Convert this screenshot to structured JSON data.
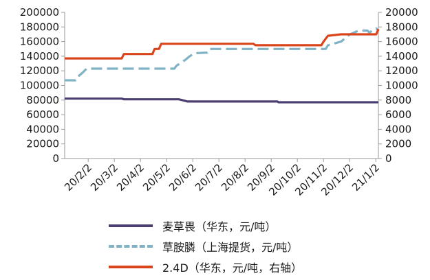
{
  "chart_data": {
    "type": "line",
    "x_categories": [
      "20/2/2",
      "20/3/2",
      "20/4/2",
      "20/5/2",
      "20/6/2",
      "20/7/2",
      "20/8/2",
      "20/9/2",
      "20/10/2",
      "20/11/2",
      "20/12/2",
      "21/1/2"
    ],
    "y_left": {
      "min": 0,
      "max": 200000,
      "ticks": [
        "0",
        "20000",
        "40000",
        "60000",
        "80000",
        "100000",
        "120000",
        "140000",
        "160000",
        "180000",
        "200000"
      ]
    },
    "y_right": {
      "min": 0,
      "max": 20000,
      "ticks": [
        "0",
        "2000",
        "4000",
        "6000",
        "8000",
        "10000",
        "12000",
        "14000",
        "16000",
        "18000",
        "20000"
      ]
    },
    "series": [
      {
        "name": "麦草畏（华东，元/吨）",
        "axis": "left",
        "color": "#4b3f72",
        "style": "solid",
        "points": [
          [
            0,
            82000
          ],
          [
            2.6,
            82000
          ],
          [
            2.7,
            81000
          ],
          [
            5.2,
            81000
          ],
          [
            5.35,
            80000
          ],
          [
            5.6,
            78000
          ],
          [
            9.7,
            78000
          ],
          [
            9.75,
            77000
          ],
          [
            14.3,
            77000
          ]
        ]
      },
      {
        "name": "草胺膦（上海提货，元/吨）",
        "axis": "left",
        "color": "#7fb2c5",
        "style": "dashed",
        "points": [
          [
            0,
            107000
          ],
          [
            0.5,
            107000
          ],
          [
            0.6,
            112000
          ],
          [
            0.8,
            117000
          ],
          [
            1.0,
            123000
          ],
          [
            5.0,
            123000
          ],
          [
            5.1,
            127000
          ],
          [
            5.3,
            131000
          ],
          [
            5.5,
            135000
          ],
          [
            5.7,
            140000
          ],
          [
            5.9,
            144000
          ],
          [
            6.5,
            145000
          ],
          [
            6.6,
            150000
          ],
          [
            11.9,
            150000
          ],
          [
            12.0,
            155000
          ],
          [
            12.6,
            160000
          ],
          [
            12.8,
            165000
          ],
          [
            13.0,
            170000
          ],
          [
            13.4,
            175000
          ],
          [
            13.8,
            175000
          ],
          [
            13.9,
            172000
          ],
          [
            14.0,
            175000
          ],
          [
            14.2,
            178000
          ],
          [
            14.3,
            175000
          ]
        ]
      },
      {
        "name": "2.4D（华东，元/吨，右轴）",
        "axis": "right",
        "color": "#d9441a",
        "style": "solid",
        "points": [
          [
            0,
            13700
          ],
          [
            2.6,
            13700
          ],
          [
            2.7,
            14300
          ],
          [
            4.0,
            14300
          ],
          [
            4.1,
            15000
          ],
          [
            4.3,
            15000
          ],
          [
            4.4,
            15700
          ],
          [
            8.6,
            15700
          ],
          [
            8.7,
            15500
          ],
          [
            11.7,
            15500
          ],
          [
            11.8,
            16000
          ],
          [
            12.0,
            16800
          ],
          [
            12.6,
            17000
          ],
          [
            14.2,
            17000
          ],
          [
            14.3,
            17700
          ]
        ]
      }
    ],
    "legend_position": "bottom"
  }
}
